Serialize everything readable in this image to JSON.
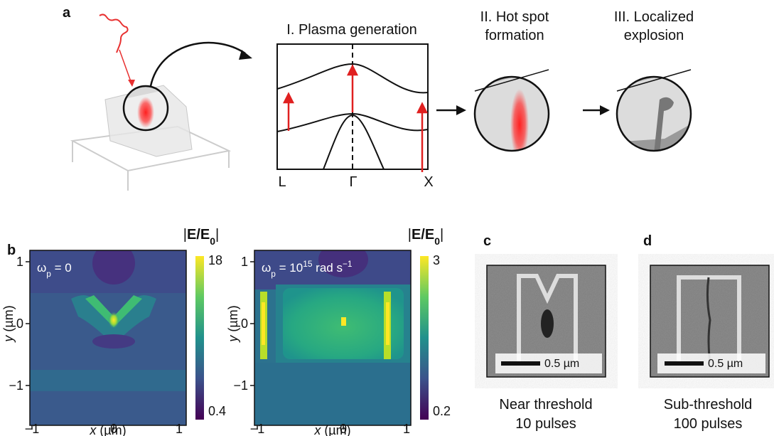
{
  "panel_a": {
    "label": "a",
    "steps": [
      {
        "title_lines": [
          "I. Plasma generation"
        ]
      },
      {
        "title_lines": [
          "II. Hot spot",
          "formation"
        ]
      },
      {
        "title_lines": [
          "III. Localized",
          "explosion"
        ]
      }
    ],
    "band_labels": [
      "L",
      "Γ",
      "X"
    ]
  },
  "panel_b": {
    "label": "b",
    "maps": [
      {
        "annotation": [
          "ω",
          "p",
          " = 0"
        ],
        "colorbar_label": [
          "|",
          "E/E",
          "0",
          "|"
        ],
        "colorbar_ticks": [
          "18",
          "0.4"
        ],
        "xticks": [
          "−1",
          "0",
          "1"
        ],
        "yticks": [
          "1",
          "0",
          "−1"
        ],
        "xlabel": [
          "x",
          " (µm)"
        ],
        "ylabel": [
          "y",
          " (µm)"
        ]
      },
      {
        "annotation": [
          "ω",
          "p",
          " = 10",
          "15",
          " rad s",
          "−1"
        ],
        "colorbar_label": [
          "|",
          "E/E",
          "0",
          "|"
        ],
        "colorbar_ticks": [
          "3",
          "0.2"
        ],
        "xticks": [
          "−1",
          "0",
          "1"
        ],
        "yticks": [
          "1",
          "0",
          "−1"
        ],
        "xlabel": [
          "x",
          " (µm)"
        ],
        "ylabel": [
          "y",
          " (µm)"
        ]
      }
    ]
  },
  "panel_c": {
    "label": "c",
    "scale_bar": "0.5 µm",
    "caption_lines": [
      "Near threshold",
      "10 pulses"
    ]
  },
  "panel_d": {
    "label": "d",
    "scale_bar": "0.5 µm",
    "caption_lines": [
      "Sub-threshold",
      "100 pulses"
    ]
  }
}
